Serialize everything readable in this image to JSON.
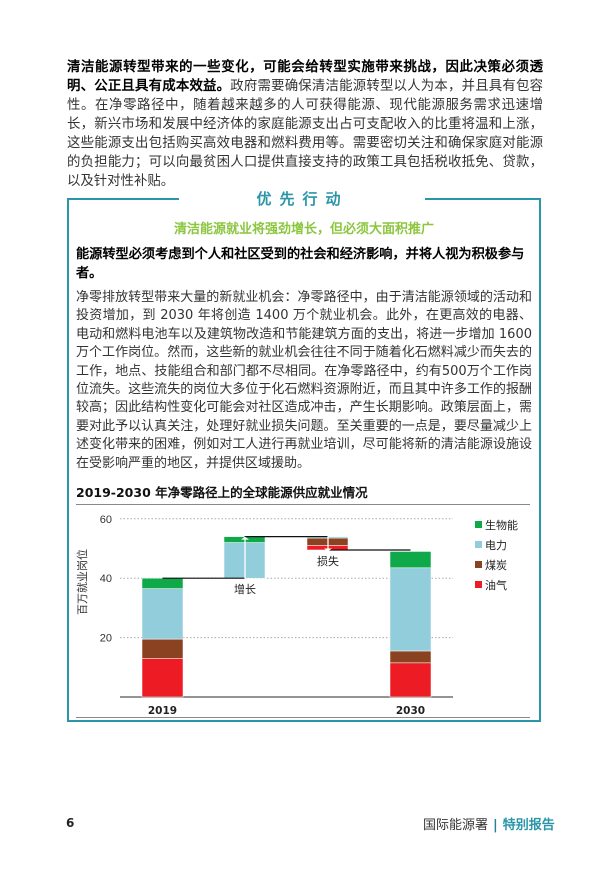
{
  "intro": {
    "bold": "清洁能源转型带来的一些变化，可能会给转型实施带来挑战，因此决策必须透明、公正且具有成本效益。",
    "text": "政府需要确保清洁能源转型以人为本，并且具有包容性。在净零路径中，随着越来越多的人可获得能源、现代能源服务需求迅速增长，新兴市场和发展中经济体的家庭能源支出占可支配收入的比重将温和上涨，这些能源支出包括购买高效电器和燃料费用等。需要密切关注和确保家庭对能源的负担能力；可以向最贫困人口提供直接支持的政策工具包括税收抵免、贷款，以及针对性补贴。"
  },
  "box": {
    "title": "优先行动",
    "subtitle": "清洁能源就业将强劲增长，但必须大面积推广",
    "bold": "能源转型必须考虑到个人和社区受到的社会和经济影响，并将人视为积极参与者。",
    "para": "净零排放转型带来大量的新就业机会：净零路径中，由于清洁能源领域的活动和投资增加，到 2030 年将创造 1400 万个就业机会。此外，在更高效的电器、电动和燃料电池车以及建筑物改造和节能建筑方面的支出，将进一步增加 1600 万个工作岗位。然而，这些新的就业机会往往不同于随着化石燃料减少而失去的工作，地点、技能组合和部门都不尽相同。在净零路径中，约有500万个工作岗位流失。这些流失的岗位大多位于化石燃料资源附近，而且其中许多工作的报酬较高；因此结构性变化可能会对社区造成冲击，产生长期影响。政策层面上，需要对此予以认真关注，处理好就业损失问题。至关重要的一点是，要尽量减少上述变化带来的困难，例如对工人进行再就业培训，尽可能将新的清洁能源设施设在受影响严重的地区，并提供区域援助。"
  },
  "chart_data": {
    "type": "bar",
    "subtype": "waterfall-stacked",
    "title": "2019-2030 年净零路径上的全球能源供应就业情况",
    "ylabel": "百万就业岗位",
    "ylim": [
      0,
      60
    ],
    "yticks": [
      20,
      40,
      60
    ],
    "grid": true,
    "legend_position": "right",
    "categories": [
      "2019",
      "增长",
      "损失",
      "2030"
    ],
    "category_labels": [
      "2019",
      "",
      "",
      "2030"
    ],
    "annotations": [
      "增长",
      "损失"
    ],
    "series": [
      {
        "name": "油气",
        "color": "#ed1c24",
        "values": [
          13,
          0,
          -1.5,
          11.5
        ]
      },
      {
        "name": "煤炭",
        "color": "#8b4220",
        "values": [
          6.5,
          0,
          -2.5,
          4
        ]
      },
      {
        "name": "电力",
        "color": "#92cddc",
        "values": [
          17,
          12,
          -0.5,
          28
        ]
      },
      {
        "name": "生物能",
        "color": "#10a94a",
        "values": [
          3.5,
          2,
          0,
          5.5
        ]
      }
    ]
  },
  "footer": {
    "page": "6",
    "org": "国际能源署",
    "sep": "|",
    "report": "特别报告"
  }
}
